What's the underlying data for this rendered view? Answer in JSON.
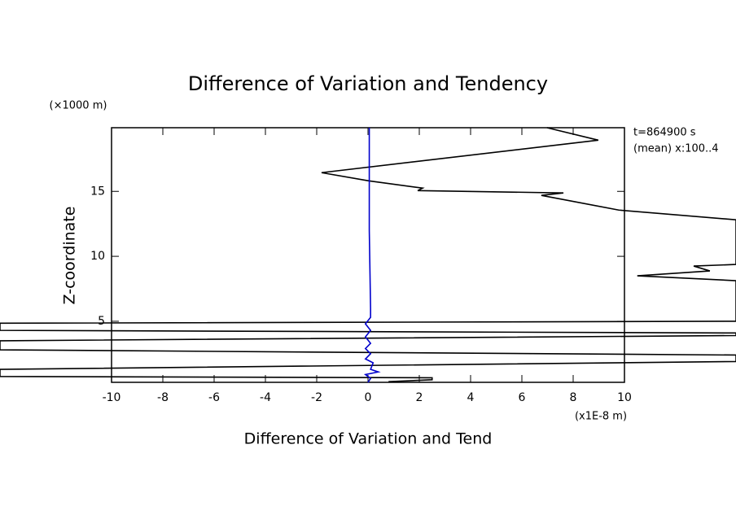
{
  "chart_data": {
    "type": "line",
    "title": "Difference of Variation and Tendency",
    "x_label": "Difference of Variation and Tend",
    "x_unit": "(x1E-8 m)",
    "y_label": "Z-coordinate",
    "y_unit": "(×1000 m)",
    "annotations": [
      "t=864900 s",
      "(mean) x:100..4"
    ],
    "xlim": [
      -10,
      10
    ],
    "ylim": [
      0.3,
      19.9
    ],
    "xticks": [
      -10,
      -8,
      -6,
      -4,
      -2,
      0,
      2,
      4,
      6,
      8,
      10
    ],
    "yticks": [
      5,
      10,
      15
    ],
    "series": [
      {
        "color": "#000000",
        "z": [
          19.9,
          18.94,
          16.44,
          15.81,
          15.25,
          15.06,
          14.88,
          14.69,
          13.56,
          12.81,
          9.375,
          9.25,
          8.875,
          8.5,
          8.125,
          5.0,
          4.85,
          4.3,
          4.1,
          3.9,
          3.5,
          2.8,
          2.4,
          1.9,
          1.3,
          0.75,
          0.65,
          0.5,
          0.35
        ],
        "values": [
          6.98,
          8.98,
          -1.81,
          0.03,
          2.13,
          1.94,
          7.62,
          6.76,
          9.78,
          14.35,
          14.35,
          12.7,
          13.33,
          10.5,
          14.35,
          14.35,
          -14.35,
          -14.35,
          14.35,
          14.35,
          -14.35,
          -14.35,
          14.35,
          14.35,
          -14.35,
          -14.35,
          2.5,
          2.5,
          0.8
        ]
      },
      {
        "color": "#0000cc",
        "z": [
          19.9,
          12,
          6,
          5.3,
          4.8,
          4.3,
          3.8,
          3.3,
          2.9,
          2.5,
          2.1,
          1.8,
          1.3,
          1.1,
          0.9,
          0.6,
          0.3
        ],
        "values": [
          0.05,
          0.05,
          0.1,
          0.1,
          -0.1,
          0.1,
          -0.1,
          0.1,
          -0.1,
          0.1,
          -0.1,
          0.2,
          0.1,
          0.4,
          -0.1,
          0.1,
          0
        ]
      }
    ]
  }
}
